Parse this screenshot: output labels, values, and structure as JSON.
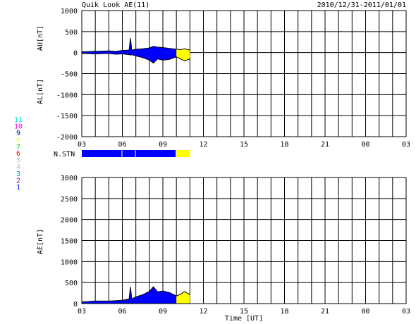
{
  "header": {
    "title": "Quik Look AE(11)",
    "date_range": "2010/12/31-2011/01/01"
  },
  "chart_data": [
    {
      "type": "area",
      "panel": "AU/AL",
      "ylabel_upper": "AU[nT]",
      "ylabel_lower": "AL[nT]",
      "ylim": [
        -2000,
        1000
      ],
      "yticks": [
        1000,
        500,
        0,
        -500,
        -1000,
        -1500,
        -2000
      ],
      "x_tick_labels": [
        "03",
        "06",
        "09",
        "12",
        "15",
        "18",
        "21",
        "00",
        "03"
      ],
      "xlim_hours": [
        3,
        27
      ],
      "grid": true,
      "series": [
        {
          "color": "#0000ff",
          "x": [
            3.0,
            4.0,
            5.0,
            5.5,
            6.0,
            6.5,
            6.6,
            6.7,
            7.0,
            7.5,
            8.0,
            8.3,
            8.6,
            9.0,
            9.5,
            10.0
          ],
          "au": [
            20,
            30,
            40,
            30,
            50,
            60,
            350,
            60,
            80,
            90,
            110,
            150,
            130,
            120,
            100,
            80
          ],
          "al": [
            -20,
            -30,
            -20,
            -40,
            -30,
            -50,
            -60,
            -50,
            -80,
            -120,
            -180,
            -250,
            -150,
            -180,
            -160,
            -100
          ]
        },
        {
          "color": "#ffff00",
          "x": [
            10.0,
            10.3,
            10.6,
            11.0
          ],
          "au": [
            80,
            70,
            90,
            60
          ],
          "al": [
            -100,
            -150,
            -200,
            -150
          ]
        }
      ]
    },
    {
      "type": "bar",
      "panel": "N.STN",
      "label": "N.STN",
      "segments": [
        {
          "x_start": 3.0,
          "x_end": 6.0,
          "color": "#0000ff"
        },
        {
          "x_start": 6.0,
          "x_end": 7.0,
          "color": "#0000ff"
        },
        {
          "x_start": 7.0,
          "x_end": 10.0,
          "color": "#0000ff"
        },
        {
          "x_start": 10.0,
          "x_end": 11.0,
          "color": "#ffff00"
        }
      ]
    },
    {
      "type": "area",
      "panel": "AE",
      "ylabel": "AE[nT]",
      "xlabel": "Time [UT]",
      "ylim": [
        0,
        3000
      ],
      "yticks": [
        3000,
        2500,
        2000,
        1500,
        1000,
        500,
        0
      ],
      "x_tick_labels": [
        "03",
        "06",
        "09",
        "12",
        "15",
        "18",
        "21",
        "00",
        "03"
      ],
      "xlim_hours": [
        3,
        27
      ],
      "grid": true,
      "series": [
        {
          "color": "#0000ff",
          "x": [
            3.0,
            4.0,
            5.0,
            5.5,
            6.0,
            6.5,
            6.6,
            6.7,
            7.0,
            7.5,
            8.0,
            8.3,
            8.6,
            9.0,
            9.5,
            10.0
          ],
          "y": [
            40,
            60,
            60,
            70,
            80,
            110,
            400,
            110,
            160,
            210,
            290,
            400,
            280,
            300,
            260,
            180
          ]
        },
        {
          "color": "#ffff00",
          "x": [
            10.0,
            10.3,
            10.6,
            11.0
          ],
          "y": [
            180,
            220,
            290,
            210
          ]
        }
      ]
    }
  ],
  "station_legend": [
    {
      "label": "11",
      "color": "#00e8e8"
    },
    {
      "label": "10",
      "color": "#ff00ff"
    },
    {
      "label": "9",
      "color": "#0000cc"
    },
    {
      "label": "8",
      "color": "#ffff00"
    },
    {
      "label": "7",
      "color": "#00cc00"
    },
    {
      "label": "6",
      "color": "#ff0000"
    },
    {
      "label": "5",
      "color": "#c0c0c0"
    },
    {
      "label": "4",
      "color": "#c0c0c0"
    },
    {
      "label": "3",
      "color": "#00a0a0"
    },
    {
      "label": "2",
      "color": "#a000a0"
    },
    {
      "label": "1",
      "color": "#0000ff"
    }
  ]
}
